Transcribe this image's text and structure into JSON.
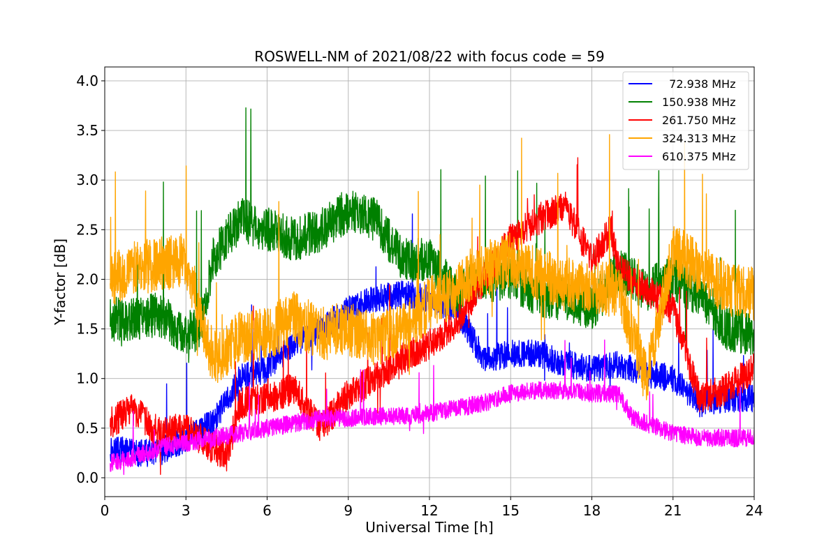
{
  "chart_data": {
    "type": "line",
    "title": "ROSWELL-NM of 2021/08/22 with focus code = 59",
    "xlabel": "Universal Time [h]",
    "ylabel": "Y-factor [dB]",
    "xlim": [
      0,
      24
    ],
    "ylim": [
      -0.19,
      4.14
    ],
    "xticks": [
      0,
      3,
      6,
      9,
      12,
      15,
      18,
      21,
      24
    ],
    "xtick_labels": [
      "0",
      "3",
      "6",
      "9",
      "12",
      "15",
      "18",
      "21",
      "24"
    ],
    "yticks": [
      0.0,
      0.5,
      1.0,
      1.5,
      2.0,
      2.5,
      3.0,
      3.5,
      4.0
    ],
    "ytick_labels": [
      "0.0",
      "0.5",
      "1.0",
      "1.5",
      "2.0",
      "2.5",
      "3.0",
      "3.5",
      "4.0"
    ],
    "grid": true,
    "legend_position": "top-right",
    "series": [
      {
        "name": "  72.938 MHz",
        "color": "#0000ff",
        "x": [
          0.2,
          1.0,
          2.0,
          3.0,
          4.0,
          5.0,
          6.0,
          7.0,
          8.0,
          9.0,
          10.0,
          11.0,
          12.0,
          13.0,
          14.0,
          15.0,
          16.0,
          17.0,
          18.0,
          19.0,
          20.0,
          21.0,
          22.0,
          23.0,
          24.0
        ],
        "y": [
          0.3,
          0.25,
          0.25,
          0.4,
          0.55,
          1.0,
          1.1,
          1.35,
          1.5,
          1.7,
          1.8,
          1.85,
          1.8,
          1.7,
          1.2,
          1.25,
          1.25,
          1.15,
          1.1,
          1.15,
          1.05,
          1.0,
          0.75,
          0.8,
          0.8
        ],
        "noise": 0.28
      },
      {
        "name": "150.938 MHz",
        "color": "#008000",
        "x": [
          0.2,
          1.0,
          2.0,
          3.0,
          3.5,
          4.0,
          5.0,
          6.0,
          7.0,
          8.0,
          9.0,
          10.0,
          11.0,
          12.0,
          13.0,
          14.0,
          15.0,
          16.0,
          17.0,
          18.0,
          19.0,
          20.0,
          21.0,
          22.0,
          23.0,
          24.0
        ],
        "y": [
          1.6,
          1.6,
          1.65,
          1.45,
          1.5,
          2.2,
          2.6,
          2.5,
          2.4,
          2.5,
          2.7,
          2.6,
          2.2,
          2.2,
          1.85,
          2.0,
          2.0,
          1.85,
          1.8,
          1.7,
          2.1,
          1.9,
          2.0,
          1.85,
          1.5,
          1.45
        ],
        "noise": 0.45
      },
      {
        "name": "261.750 MHz",
        "color": "#ff0000",
        "x": [
          0.2,
          1.0,
          2.0,
          3.0,
          4.0,
          4.5,
          5.0,
          6.0,
          7.0,
          8.0,
          9.0,
          10.0,
          11.0,
          12.0,
          13.0,
          14.0,
          15.0,
          16.0,
          17.0,
          18.0,
          18.7,
          19.0,
          20.0,
          21.0,
          22.0,
          23.0,
          24.0
        ],
        "y": [
          0.55,
          0.7,
          0.45,
          0.5,
          0.3,
          0.2,
          0.75,
          0.8,
          0.9,
          0.5,
          0.85,
          1.0,
          1.2,
          1.35,
          1.55,
          2.0,
          2.4,
          2.6,
          2.75,
          2.2,
          2.5,
          2.1,
          1.9,
          1.7,
          0.8,
          0.9,
          1.1
        ],
        "noise": 0.32
      },
      {
        "name": "324.313 MHz",
        "color": "#ffa500",
        "x": [
          0.2,
          1.0,
          2.0,
          3.0,
          4.0,
          5.0,
          6.0,
          7.0,
          8.0,
          9.0,
          10.0,
          11.0,
          12.0,
          13.0,
          14.0,
          15.0,
          16.0,
          17.0,
          18.0,
          19.0,
          20.0,
          20.5,
          21.0,
          22.0,
          23.0,
          24.0
        ],
        "y": [
          2.0,
          2.1,
          2.15,
          2.2,
          1.2,
          1.4,
          1.45,
          1.6,
          1.45,
          1.5,
          1.4,
          1.5,
          1.75,
          1.9,
          2.1,
          2.2,
          2.05,
          1.95,
          1.9,
          1.9,
          1.0,
          1.6,
          2.3,
          2.1,
          1.9,
          1.85
        ],
        "noise": 0.55
      },
      {
        "name": "610.375 MHz",
        "color": "#ff00ff",
        "x": [
          0.2,
          1.0,
          2.0,
          3.0,
          4.0,
          5.0,
          6.0,
          7.0,
          8.0,
          9.0,
          10.0,
          11.0,
          12.0,
          13.0,
          14.0,
          15.0,
          16.0,
          17.0,
          18.0,
          19.0,
          19.5,
          20.0,
          21.0,
          22.0,
          23.0,
          24.0
        ],
        "y": [
          0.15,
          0.2,
          0.3,
          0.35,
          0.4,
          0.45,
          0.5,
          0.55,
          0.6,
          0.6,
          0.62,
          0.62,
          0.65,
          0.7,
          0.75,
          0.85,
          0.88,
          0.88,
          0.85,
          0.85,
          0.6,
          0.55,
          0.45,
          0.4,
          0.4,
          0.4
        ],
        "noise": 0.18
      }
    ]
  }
}
